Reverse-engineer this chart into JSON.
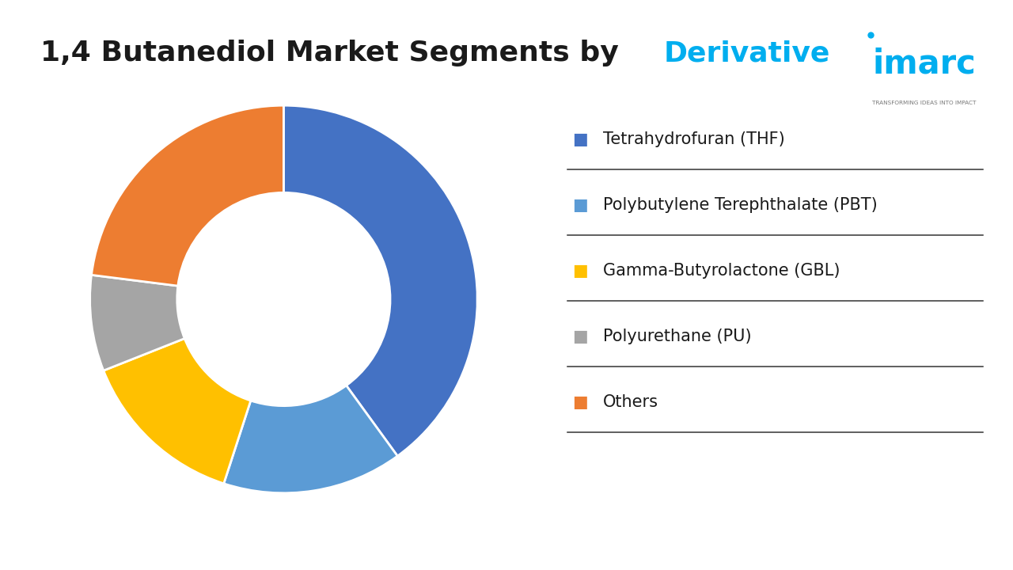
{
  "title_black": "1,4 Butanediol Market Segments by ",
  "title_blue": "Derivative",
  "title_fontsize": 26,
  "segments": [
    {
      "label": "Tetrahydrofuran (THF)",
      "value": 40,
      "color": "#4472C4"
    },
    {
      "label": "Polybutylene Terephthalate (PBT)",
      "value": 15,
      "color": "#5B9BD5"
    },
    {
      "label": "Gamma-Butyrolactone (GBL)",
      "value": 14,
      "color": "#FFC000"
    },
    {
      "label": "Polyurethane (PU)",
      "value": 8,
      "color": "#A5A5A5"
    },
    {
      "label": "Others",
      "value": 23,
      "color": "#ED7D31"
    }
  ],
  "background_color": "#FFFFFF",
  "wedge_edge_color": "#FFFFFF",
  "wedge_linewidth": 2.0,
  "donut_ratio": 0.55,
  "legend_fontsize": 15,
  "legend_bullet": "■",
  "start_angle": 90,
  "logo_text": "imarc",
  "logo_sub": "TRANSFORMING IDEAS INTO IMPACT",
  "logo_color": "#00AEEF",
  "logo_sub_color": "#777777",
  "title_blue_color": "#00AEEF"
}
